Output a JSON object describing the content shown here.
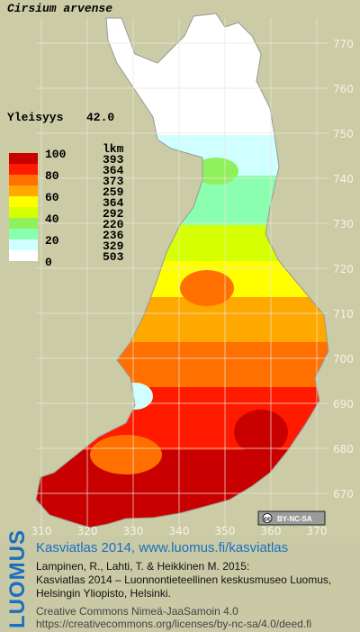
{
  "header": {
    "title": "Cirsium arvense",
    "prevalence_label": "Yleisyys",
    "prevalence_value": "42.0"
  },
  "legend": {
    "class_labels": [
      "100",
      "80",
      "60",
      "40",
      "20",
      "0"
    ],
    "colors": [
      "#c80000",
      "#ff1a00",
      "#ff7000",
      "#ffa800",
      "#ffff00",
      "#d6ff00",
      "#8ef05a",
      "#8affb0",
      "#d0ffff",
      "#ffffff"
    ],
    "counts_header": "lkm",
    "counts": [
      "393",
      "364",
      "373",
      "259",
      "364",
      "292",
      "220",
      "236",
      "329",
      "503"
    ]
  },
  "grid": {
    "y_labels": [
      "770",
      "760",
      "750",
      "740",
      "730",
      "720",
      "710",
      "700",
      "690",
      "680",
      "670"
    ],
    "x_labels": [
      "310",
      "320",
      "330",
      "340",
      "350",
      "360",
      "370"
    ]
  },
  "license_badge": "BY-NC-SA",
  "footer": {
    "logo": "LUOMUS",
    "link": "Kasviatlas 2014, www.luomus.fi/kasviatlas",
    "citation": [
      "Lampinen, R., Lahti, T. & Heikkinen M. 2015:",
      "Kasviatlas 2014 – Luonnontieteellinen keskusmuseo Luomus,",
      "Helsingin Yliopisto, Helsinki."
    ],
    "license": [
      "Creative Commons Nimeä-JaaSamoin 4.0",
      "https://creativecommons.org/licenses/by-nc-sa/4.0/deed.fi"
    ]
  }
}
